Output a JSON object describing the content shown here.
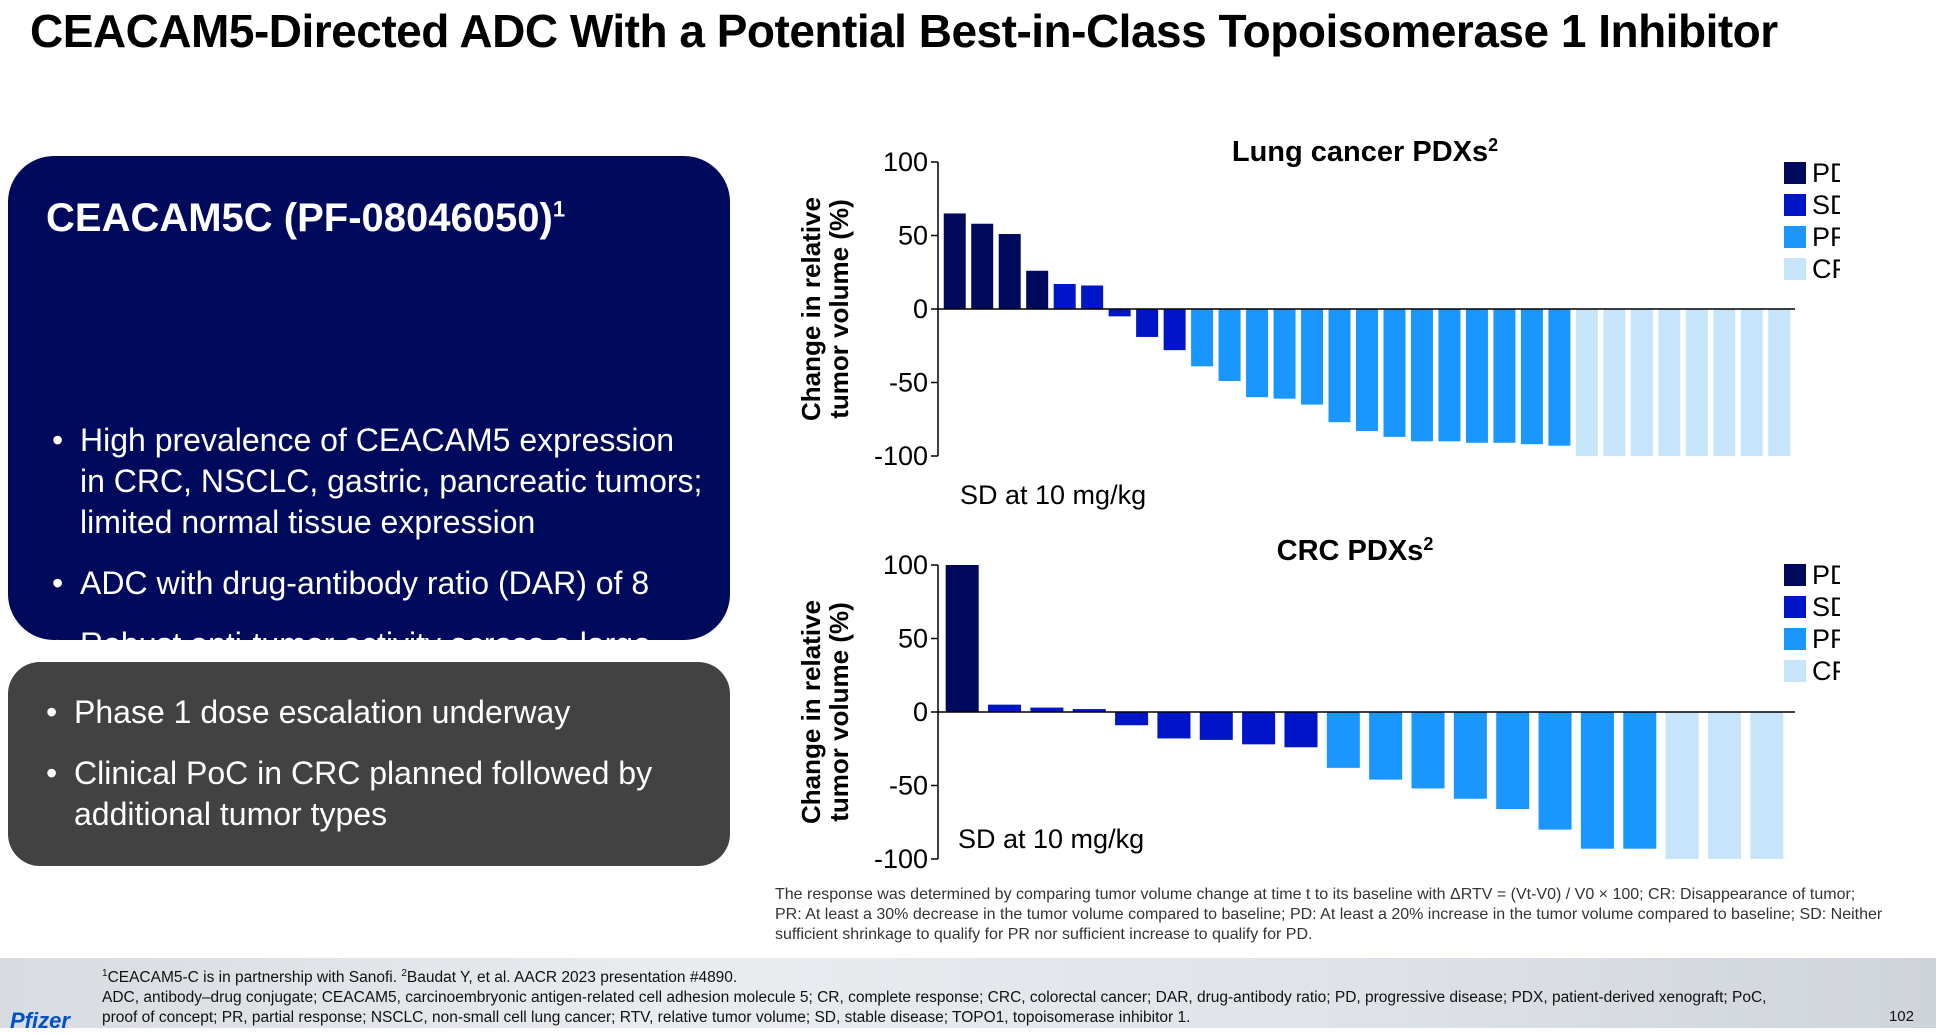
{
  "title": "CEACAM5-Directed ADC With a Potential Best-in-Class Topoisomerase 1 Inhibitor",
  "panel": {
    "heading": "CEACAM5C (PF-08046050)",
    "heading_sup": "1",
    "bullets": [
      "High prevalence of CEACAM5 expression in CRC, NSCLC, gastric, pancreatic tumors; limited normal tissue expression",
      "ADC with drug-antibody ratio (DAR) of 8",
      "Robust anti-tumor activity across a large panel of CRC and lung PDX models"
    ]
  },
  "panel2": {
    "bullets": [
      "Phase 1 dose escalation underway",
      "Clinical PoC in CRC planned followed by additional tumor types"
    ]
  },
  "legend": [
    {
      "label": "PD",
      "color": "#000a5c"
    },
    {
      "label": "SD",
      "color": "#0014c8"
    },
    {
      "label": "PR",
      "color": "#1a96ff"
    },
    {
      "label": "CR",
      "color": "#c6e4fa"
    }
  ],
  "chart_data": [
    {
      "type": "bar",
      "title": "Lung cancer PDXs",
      "title_sup": "2",
      "ylabel": "Change in relative tumor volume (%)",
      "ylabel_lines": [
        "Change in relative",
        "tumor volume (%)"
      ],
      "ylim": [
        -100,
        100
      ],
      "yticks": [
        "100",
        "50",
        "0",
        "-50",
        "-100"
      ],
      "annotation": "SD at 10 mg/kg",
      "values": [
        65,
        58,
        51,
        26,
        17,
        16,
        -5,
        -19,
        -28,
        -39,
        -49,
        -60,
        -61,
        -65,
        -77,
        -83,
        -87,
        -90,
        -90,
        -91,
        -91,
        -92,
        -93,
        -100,
        -100,
        -100,
        -100,
        -100,
        -100,
        -100,
        -100
      ],
      "response": [
        "PD",
        "PD",
        "PD",
        "PD",
        "SD",
        "SD",
        "SD",
        "SD",
        "SD",
        "PR",
        "PR",
        "PR",
        "PR",
        "PR",
        "PR",
        "PR",
        "PR",
        "PR",
        "PR",
        "PR",
        "PR",
        "PR",
        "PR",
        "CR",
        "CR",
        "CR",
        "CR",
        "CR",
        "CR",
        "CR",
        "CR"
      ]
    },
    {
      "type": "bar",
      "title": "CRC PDXs",
      "title_sup": "2",
      "ylabel": "Change in relative tumor volume (%)",
      "ylabel_lines": [
        "Change in relative",
        "tumor volume (%)"
      ],
      "ylim": [
        -100,
        100
      ],
      "yticks": [
        "100",
        "50",
        "0",
        "-50",
        "-100"
      ],
      "annotation": "SD at 10 mg/kg",
      "values": [
        100,
        5,
        3,
        2,
        -9,
        -18,
        -19,
        -22,
        -24,
        -38,
        -46,
        -52,
        -59,
        -66,
        -80,
        -93,
        -93,
        -100,
        -100,
        -100
      ],
      "response": [
        "PD",
        "SD",
        "SD",
        "SD",
        "SD",
        "SD",
        "SD",
        "SD",
        "SD",
        "PR",
        "PR",
        "PR",
        "PR",
        "PR",
        "PR",
        "PR",
        "PR",
        "CR",
        "CR",
        "CR"
      ]
    }
  ],
  "footnote": "The response was determined by comparing tumor volume change at time t to its baseline with ΔRTV = (Vt-V0) / V0 × 100; CR: Disappearance of tumor; PR: At least a 30% decrease in the tumor volume compared to baseline; PD: At least a 20% increase in the tumor volume compared to baseline; SD: Neither sufficient shrinkage to qualify for PR nor sufficient increase to qualify for PD.",
  "footer": {
    "ref1_sup": "1",
    "ref1": "CEACAM5-C is in partnership with Sanofi. ",
    "ref2_sup": "2",
    "ref2": "Baudat Y, et al. AACR 2023 presentation #4890.",
    "abbreviations": "ADC, antibody–drug conjugate; CEACAM5, carcinoembryonic antigen-related cell adhesion molecule 5; CR, complete response; CRC, colorectal cancer; DAR, drug-antibody ratio; PD, progressive disease; PDX, patient-derived xenograft; PoC, proof of concept; PR, partial response; NSCLC, non-small cell lung cancer; RTV, relative tumor volume; SD, stable disease; TOPO1, topoisomerase inhibitor 1.",
    "logo": "Pfizer",
    "page": "102"
  }
}
